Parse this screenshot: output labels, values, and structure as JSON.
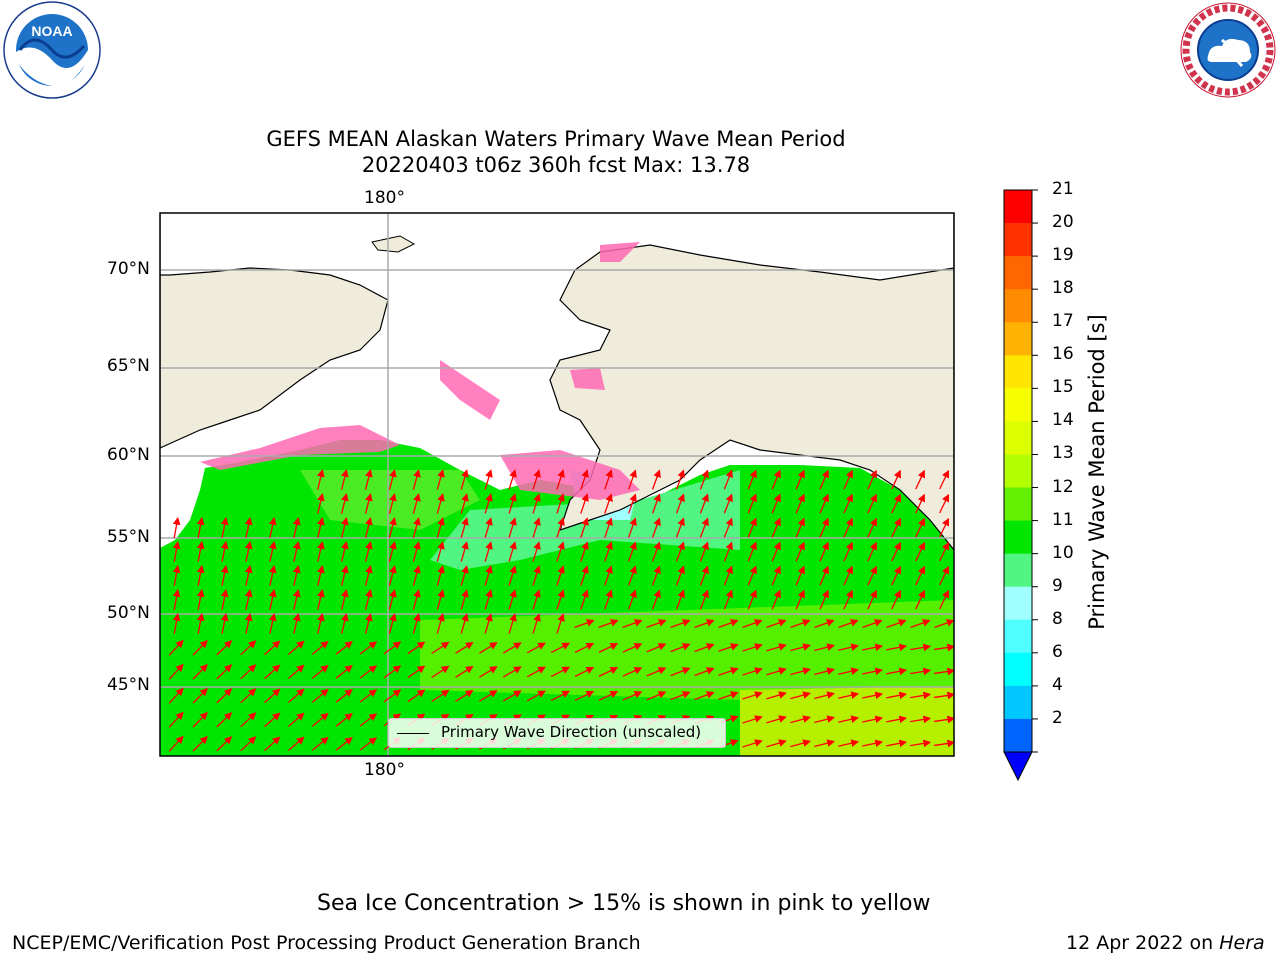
{
  "header": {
    "title_line1": "GEFS MEAN Alaskan Waters Primary Wave Mean Period",
    "title_line2": "20220403 t06z 360h fcst   Max: 13.78"
  },
  "logos": {
    "noaa_text": "NOAA",
    "noaa_ring_text": "NATIONAL OCEANIC AND ATMOSPHERIC ADMINISTRATION · U.S. DEPARTMENT OF COMMERCE",
    "nws_ring_text": "NATIONAL WEATHER SERVICE"
  },
  "map": {
    "lon_label_top": "180°",
    "lon_label_bottom": "180°",
    "lat_labels": [
      {
        "label": "70°N"
      },
      {
        "label": "65°N"
      },
      {
        "label": "60°N"
      },
      {
        "label": "55°N"
      },
      {
        "label": "50°N"
      },
      {
        "label": "45°N"
      }
    ],
    "legend_label": "Primary Wave Direction (unscaled)",
    "arrow_color": "#ff0000",
    "land_color": "#efecdc",
    "ocean_color": "#00e600"
  },
  "colorbar": {
    "label": "Primary Wave Mean Period [s]",
    "ticks": [
      "21",
      "20",
      "19",
      "18",
      "17",
      "16",
      "15",
      "14",
      "13",
      "12",
      "11",
      "10",
      "9",
      "8",
      "6",
      "4",
      "2"
    ],
    "colors": [
      "#ff0000",
      "#ff3300",
      "#ff6600",
      "#ff8c00",
      "#ffb300",
      "#ffe600",
      "#f5ff00",
      "#dcff00",
      "#b4ff00",
      "#64f000",
      "#00e600",
      "#50f582",
      "#a0ffff",
      "#50ffff",
      "#00ffff",
      "#00c8ff",
      "#0064ff"
    ],
    "extend_color": "#0000ff"
  },
  "footer": {
    "ice_note": "Sea Ice Concentration > 15% is shown in pink to yellow",
    "credit": "NCEP/EMC/Verification Post Processing Product Generation Branch",
    "date_prefix": "12 Apr 2022 on ",
    "date_machine": "Hera"
  }
}
